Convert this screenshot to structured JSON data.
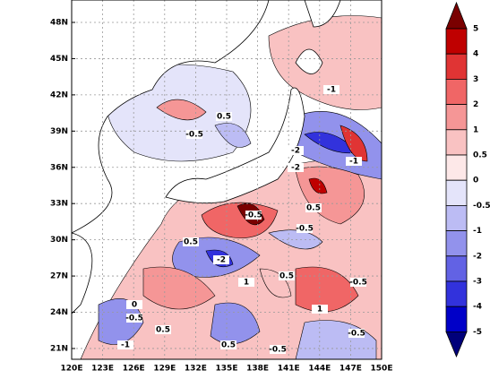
{
  "map": {
    "lat_labels": [
      "48N",
      "45N",
      "42N",
      "39N",
      "36N",
      "33N",
      "30N",
      "27N",
      "24N",
      "21N"
    ],
    "lon_labels": [
      "120E",
      "123E",
      "126E",
      "129E",
      "132E",
      "135E",
      "138E",
      "141E",
      "144E",
      "147E",
      "150E"
    ],
    "contour_labels": [
      "-0.5",
      "0.5",
      "-1",
      "-2",
      "-0.5",
      "0.5",
      "-0.5",
      "-2",
      "-0.5",
      "0.5",
      "1",
      "-1",
      "0.5",
      "-0.5",
      "0",
      "-1",
      "0.5",
      "-0.5",
      "1",
      "-2",
      "0.5",
      "-0.5"
    ]
  },
  "colorbar": {
    "labels": [
      "5",
      "4",
      "3",
      "2",
      "1",
      "0.5",
      "0",
      "-0.5",
      "-1",
      "-2",
      "-3",
      "-4",
      "-5"
    ],
    "colors": [
      "#7a0000",
      "#bf0000",
      "#e03434",
      "#f06666",
      "#f59696",
      "#f9c2c2",
      "#fde8e8",
      "#e4e4fa",
      "#bcbcf4",
      "#9292ec",
      "#6262e4",
      "#3232dc",
      "#0000c8",
      "#00007a"
    ]
  }
}
